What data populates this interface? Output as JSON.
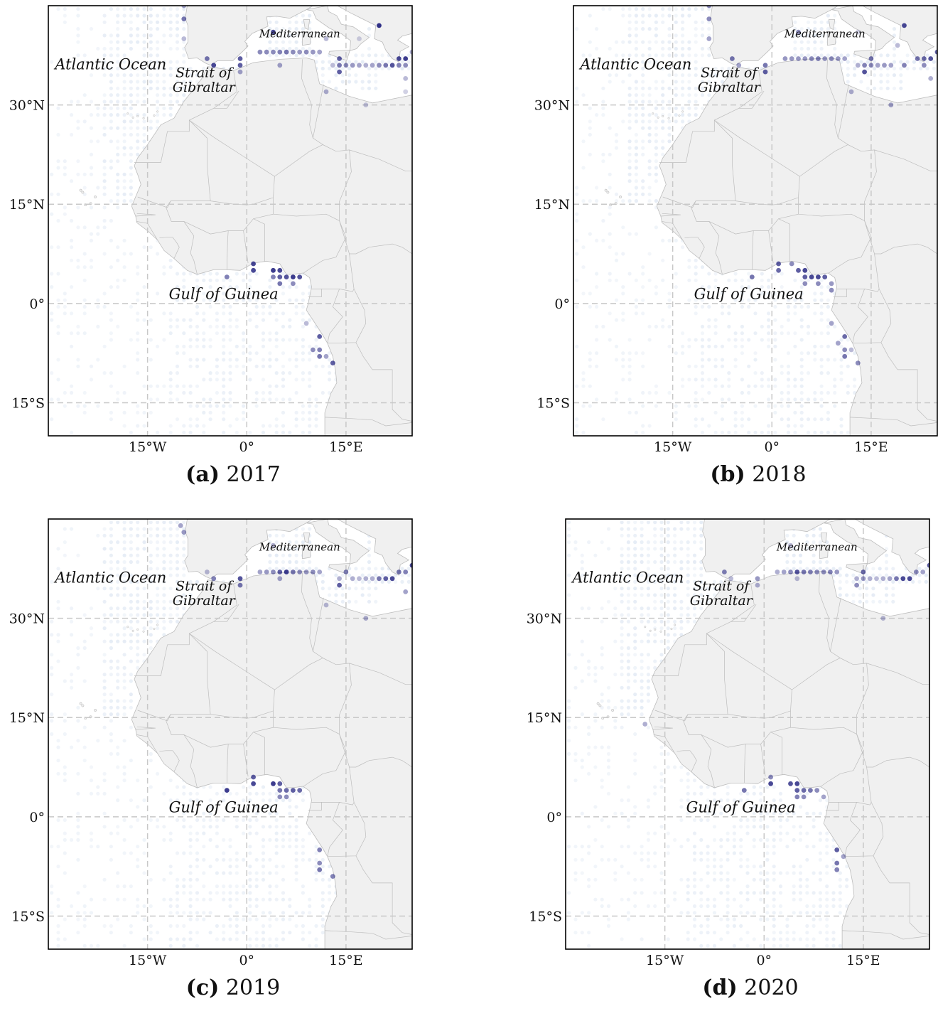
{
  "figure": {
    "panels": [
      {
        "letter": "(a)",
        "year": "2017",
        "dots": [
          [
            -9.5,
            45,
            0.4
          ],
          [
            -9.5,
            43,
            0.6
          ],
          [
            -9.5,
            40,
            0.3
          ],
          [
            -6,
            37,
            0.6
          ],
          [
            -5,
            36,
            0.8
          ],
          [
            -1,
            37,
            0.7
          ],
          [
            -1,
            36,
            0.7
          ],
          [
            -1,
            35,
            0.4
          ],
          [
            2,
            38,
            0.5
          ],
          [
            3,
            38,
            0.5
          ],
          [
            4,
            38,
            0.5
          ],
          [
            5,
            38,
            0.55
          ],
          [
            6,
            38,
            0.6
          ],
          [
            7,
            38,
            0.5
          ],
          [
            8,
            38,
            0.45
          ],
          [
            9,
            38,
            0.5
          ],
          [
            10,
            38,
            0.45
          ],
          [
            11,
            38,
            0.4
          ],
          [
            4,
            41,
            0.8
          ],
          [
            12,
            40,
            0.3
          ],
          [
            17,
            40,
            0.2
          ],
          [
            20,
            42,
            0.9
          ],
          [
            25,
            38,
            0.35
          ],
          [
            5,
            36,
            0.4
          ],
          [
            13,
            36,
            0.3
          ],
          [
            14,
            37,
            0.7
          ],
          [
            14,
            36,
            0.6
          ],
          [
            15,
            36,
            0.5
          ],
          [
            14,
            35,
            0.7
          ],
          [
            16,
            36,
            0.45
          ],
          [
            17,
            36,
            0.4
          ],
          [
            18,
            36,
            0.35
          ],
          [
            19,
            36,
            0.4
          ],
          [
            20,
            36,
            0.5
          ],
          [
            21,
            36,
            0.6
          ],
          [
            22,
            36,
            0.75
          ],
          [
            23,
            36,
            0.55
          ],
          [
            23,
            37,
            0.8
          ],
          [
            24,
            37,
            0.85
          ],
          [
            24,
            36,
            0.5
          ],
          [
            24,
            34,
            0.3
          ],
          [
            12,
            32,
            0.35
          ],
          [
            24,
            32,
            0.2
          ],
          [
            18,
            30,
            0.25
          ],
          [
            1,
            6,
            0.8
          ],
          [
            1,
            5,
            0.8
          ],
          [
            -3,
            4,
            0.55
          ],
          [
            4,
            5,
            0.85
          ],
          [
            5,
            5,
            0.8
          ],
          [
            4,
            4,
            0.55
          ],
          [
            5,
            4,
            0.7
          ],
          [
            6,
            4,
            0.75
          ],
          [
            7,
            4,
            0.85
          ],
          [
            8,
            4,
            0.75
          ],
          [
            5,
            3,
            0.6
          ],
          [
            7,
            3,
            0.5
          ],
          [
            9,
            -3,
            0.3
          ],
          [
            11,
            -5,
            0.7
          ],
          [
            10,
            -7,
            0.5
          ],
          [
            11,
            -7,
            0.55
          ],
          [
            11,
            -8,
            0.6
          ],
          [
            12,
            -8,
            0.4
          ],
          [
            13,
            -9,
            0.7
          ]
        ]
      },
      {
        "letter": "(b)",
        "year": "2018",
        "dots": [
          [
            -9.5,
            45,
            0.5
          ],
          [
            -9.5,
            43,
            0.5
          ],
          [
            -9.5,
            40,
            0.4
          ],
          [
            -6,
            37,
            0.6
          ],
          [
            -5,
            36,
            0.4
          ],
          [
            -1,
            36,
            0.6
          ],
          [
            -1,
            35,
            0.7
          ],
          [
            2,
            37,
            0.45
          ],
          [
            3,
            37,
            0.45
          ],
          [
            4,
            37,
            0.45
          ],
          [
            5,
            37,
            0.45
          ],
          [
            6,
            37,
            0.5
          ],
          [
            7,
            37,
            0.55
          ],
          [
            8,
            37,
            0.45
          ],
          [
            9,
            37,
            0.5
          ],
          [
            10,
            37,
            0.45
          ],
          [
            11,
            37,
            0.4
          ],
          [
            4,
            41,
            0.5
          ],
          [
            13,
            41,
            0.2
          ],
          [
            19,
            39,
            0.3
          ],
          [
            20,
            42,
            0.8
          ],
          [
            13,
            36,
            0.35
          ],
          [
            14,
            36,
            0.55
          ],
          [
            15,
            37,
            0.6
          ],
          [
            15,
            36,
            0.5
          ],
          [
            14,
            35,
            0.75
          ],
          [
            16,
            36,
            0.4
          ],
          [
            17,
            36,
            0.45
          ],
          [
            18,
            36,
            0.4
          ],
          [
            20,
            36,
            0.55
          ],
          [
            22,
            37,
            0.6
          ],
          [
            23,
            37,
            0.65
          ],
          [
            24,
            37,
            0.75
          ],
          [
            23,
            36,
            0.5
          ],
          [
            24,
            34,
            0.35
          ],
          [
            25,
            38,
            0.7
          ],
          [
            12,
            32,
            0.35
          ],
          [
            18,
            30,
            0.4
          ],
          [
            -3,
            4,
            0.6
          ],
          [
            1,
            6,
            0.7
          ],
          [
            1,
            5,
            0.65
          ],
          [
            3,
            6,
            0.5
          ],
          [
            4,
            5,
            0.7
          ],
          [
            5,
            5,
            0.8
          ],
          [
            5,
            4,
            0.7
          ],
          [
            6,
            4,
            0.8
          ],
          [
            7,
            4,
            0.8
          ],
          [
            8,
            4,
            0.7
          ],
          [
            9,
            3,
            0.45
          ],
          [
            5,
            3,
            0.5
          ],
          [
            7,
            3,
            0.5
          ],
          [
            9,
            2,
            0.5
          ],
          [
            9,
            -3,
            0.4
          ],
          [
            11,
            -5,
            0.65
          ],
          [
            10,
            -6,
            0.4
          ],
          [
            11,
            -7,
            0.5
          ],
          [
            11,
            -8,
            0.6
          ],
          [
            12,
            -7,
            0.3
          ],
          [
            13,
            -9,
            0.5
          ]
        ]
      },
      {
        "letter": "(c)",
        "year": "2019",
        "dots": [
          [
            -10,
            44,
            0.4
          ],
          [
            -9.5,
            43,
            0.45
          ],
          [
            -5,
            36,
            0.55
          ],
          [
            -6,
            37,
            0.3
          ],
          [
            -1,
            36,
            0.75
          ],
          [
            -1,
            35,
            0.6
          ],
          [
            2,
            37,
            0.4
          ],
          [
            3,
            37,
            0.45
          ],
          [
            4,
            37,
            0.5
          ],
          [
            5,
            37,
            0.7
          ],
          [
            6,
            37,
            0.85
          ],
          [
            7,
            37,
            0.6
          ],
          [
            8,
            37,
            0.5
          ],
          [
            9,
            37,
            0.45
          ],
          [
            10,
            37,
            0.5
          ],
          [
            11,
            37,
            0.4
          ],
          [
            4,
            41,
            0.35
          ],
          [
            5,
            36,
            0.4
          ],
          [
            14,
            36,
            0.35
          ],
          [
            15,
            37,
            0.55
          ],
          [
            14,
            35,
            0.7
          ],
          [
            16,
            36,
            0.35
          ],
          [
            17,
            36,
            0.3
          ],
          [
            18,
            36,
            0.35
          ],
          [
            19,
            36,
            0.35
          ],
          [
            20,
            36,
            0.6
          ],
          [
            21,
            36,
            0.7
          ],
          [
            22,
            36,
            0.8
          ],
          [
            23,
            37,
            0.6
          ],
          [
            24,
            37,
            0.55
          ],
          [
            24,
            34,
            0.4
          ],
          [
            25,
            38,
            0.8
          ],
          [
            12,
            32,
            0.3
          ],
          [
            18,
            30,
            0.35
          ],
          [
            -3,
            4,
            0.85
          ],
          [
            1,
            6,
            0.7
          ],
          [
            1,
            5,
            0.8
          ],
          [
            4,
            5,
            0.85
          ],
          [
            5,
            5,
            0.7
          ],
          [
            5,
            4,
            0.6
          ],
          [
            6,
            4,
            0.65
          ],
          [
            7,
            4,
            0.7
          ],
          [
            8,
            4,
            0.65
          ],
          [
            5,
            3,
            0.5
          ],
          [
            6,
            3,
            0.5
          ],
          [
            11,
            -5,
            0.55
          ],
          [
            11,
            -7,
            0.5
          ],
          [
            11,
            -8,
            0.6
          ],
          [
            13,
            -9,
            0.55
          ]
        ]
      },
      {
        "letter": "(d)",
        "year": "2020",
        "dots": [
          [
            -6,
            37,
            0.55
          ],
          [
            -5,
            36,
            0.3
          ],
          [
            -1,
            36,
            0.45
          ],
          [
            -1,
            35,
            0.35
          ],
          [
            2,
            37,
            0.35
          ],
          [
            3,
            37,
            0.4
          ],
          [
            4,
            37,
            0.5
          ],
          [
            5,
            37,
            0.75
          ],
          [
            6,
            37,
            0.6
          ],
          [
            7,
            37,
            0.55
          ],
          [
            8,
            37,
            0.5
          ],
          [
            9,
            37,
            0.5
          ],
          [
            10,
            37,
            0.55
          ],
          [
            11,
            37,
            0.45
          ],
          [
            4,
            41,
            0.3
          ],
          [
            5,
            36,
            0.3
          ],
          [
            14,
            36,
            0.35
          ],
          [
            15,
            37,
            0.65
          ],
          [
            15,
            36,
            0.45
          ],
          [
            14,
            35,
            0.5
          ],
          [
            16,
            36,
            0.35
          ],
          [
            17,
            36,
            0.3
          ],
          [
            18,
            36,
            0.35
          ],
          [
            19,
            36,
            0.4
          ],
          [
            20,
            36,
            0.6
          ],
          [
            21,
            36,
            0.8
          ],
          [
            22,
            36,
            0.8
          ],
          [
            23,
            37,
            0.5
          ],
          [
            24,
            37,
            0.4
          ],
          [
            25,
            38,
            0.7
          ],
          [
            18,
            30,
            0.3
          ],
          [
            -18,
            14,
            0.35
          ],
          [
            -3,
            4,
            0.6
          ],
          [
            1,
            6,
            0.5
          ],
          [
            1,
            5,
            0.8
          ],
          [
            4,
            5,
            0.75
          ],
          [
            5,
            5,
            0.8
          ],
          [
            5,
            4,
            0.7
          ],
          [
            6,
            4,
            0.65
          ],
          [
            7,
            4,
            0.6
          ],
          [
            8,
            4,
            0.5
          ],
          [
            5,
            3,
            0.55
          ],
          [
            6,
            3,
            0.5
          ],
          [
            9,
            3,
            0.4
          ],
          [
            11,
            -5,
            0.7
          ],
          [
            11,
            -7,
            0.6
          ],
          [
            11,
            -8,
            0.55
          ],
          [
            12,
            -6,
            0.4
          ]
        ]
      }
    ],
    "labels": {
      "atlantic": "Atlantic Ocean",
      "strait_line1": "Strait of",
      "strait_line2": "Gibraltar",
      "mediterranean": "Mediterranean",
      "gulf": "Gulf of Guinea"
    },
    "lat_ticks": [
      {
        "value": 30,
        "label": "30°N"
      },
      {
        "value": 15,
        "label": "15°N"
      },
      {
        "value": 0,
        "label": "0°"
      },
      {
        "value": -15,
        "label": "15°S"
      }
    ],
    "lon_ticks": [
      {
        "value": -15,
        "label": "15°W"
      },
      {
        "value": 0,
        "label": "0°"
      },
      {
        "value": 15,
        "label": "15°E"
      }
    ],
    "extent": {
      "lon_min": -30,
      "lon_max": 25,
      "lat_min": -20,
      "lat_max": 45
    },
    "colors": {
      "land": "#f0f0f0",
      "border": "#bdbdbd",
      "grid": "#c8c8c8",
      "ocean_dot": "#dde6f2",
      "signal_dot": "#1a1a7a"
    }
  }
}
